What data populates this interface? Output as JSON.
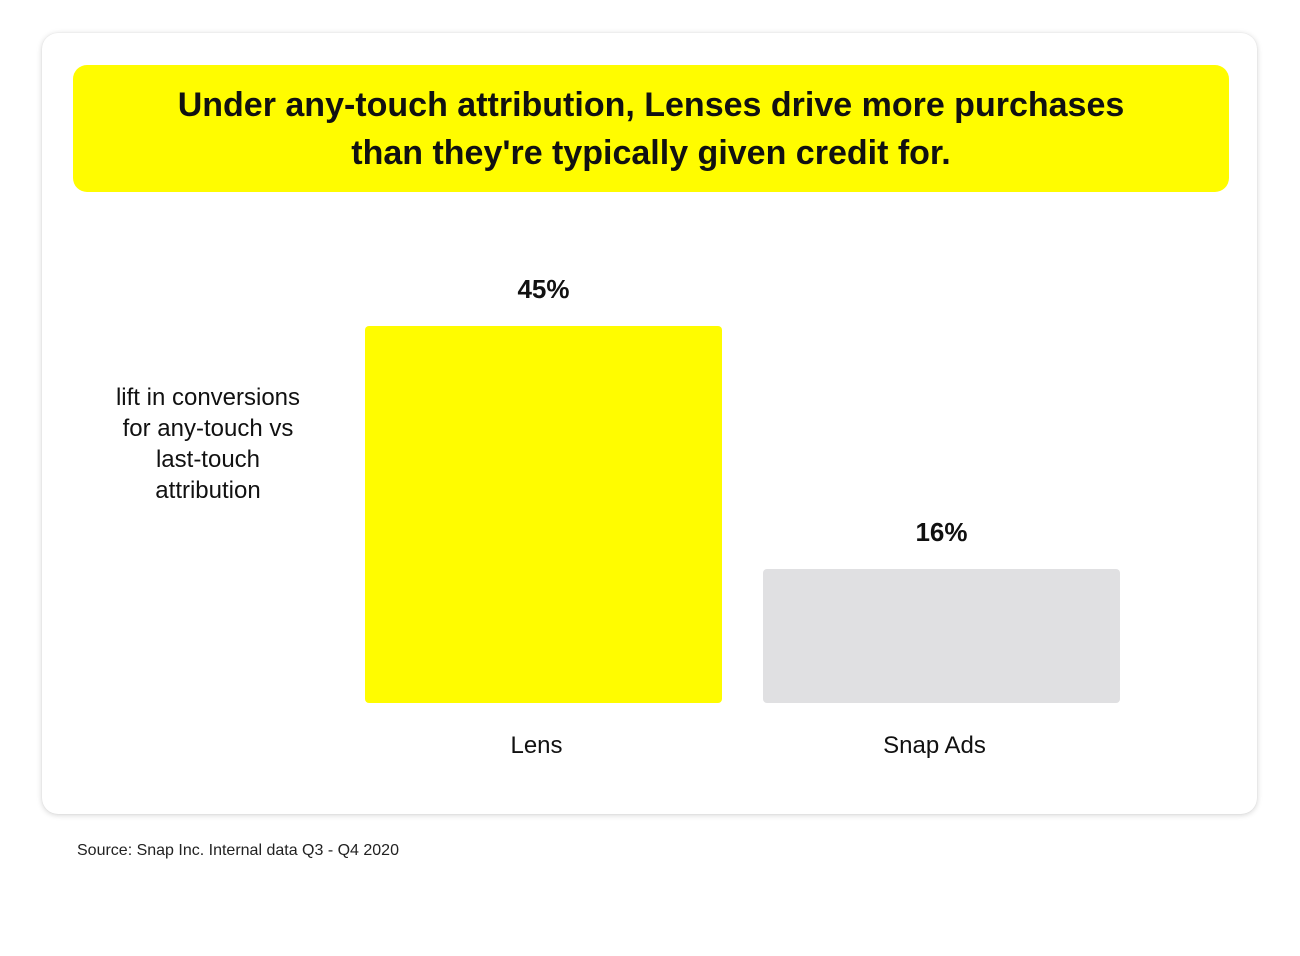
{
  "title": "Under any-touch attribution, Lenses drive more purchases than they're typically given credit for.",
  "source": "Source: Snap Inc. Internal data Q3 - Q4 2020",
  "colors": {
    "title_band": "#FFFC00",
    "lens_bar": "#FFFC00",
    "snap_ads_bar": "#E0E0E2"
  },
  "chart_data": {
    "type": "bar",
    "title": "Under any-touch attribution, Lenses drive more purchases than they're typically given credit for.",
    "ylabel": "lift in conversions for any-touch vs last-touch attribution",
    "xlabel": "",
    "categories": [
      "Lens",
      "Snap Ads"
    ],
    "values": [
      45,
      16
    ],
    "value_labels": [
      "45%",
      "16%"
    ],
    "unit": "%",
    "ylim": [
      0,
      45
    ],
    "grid": false,
    "legend": "none"
  }
}
